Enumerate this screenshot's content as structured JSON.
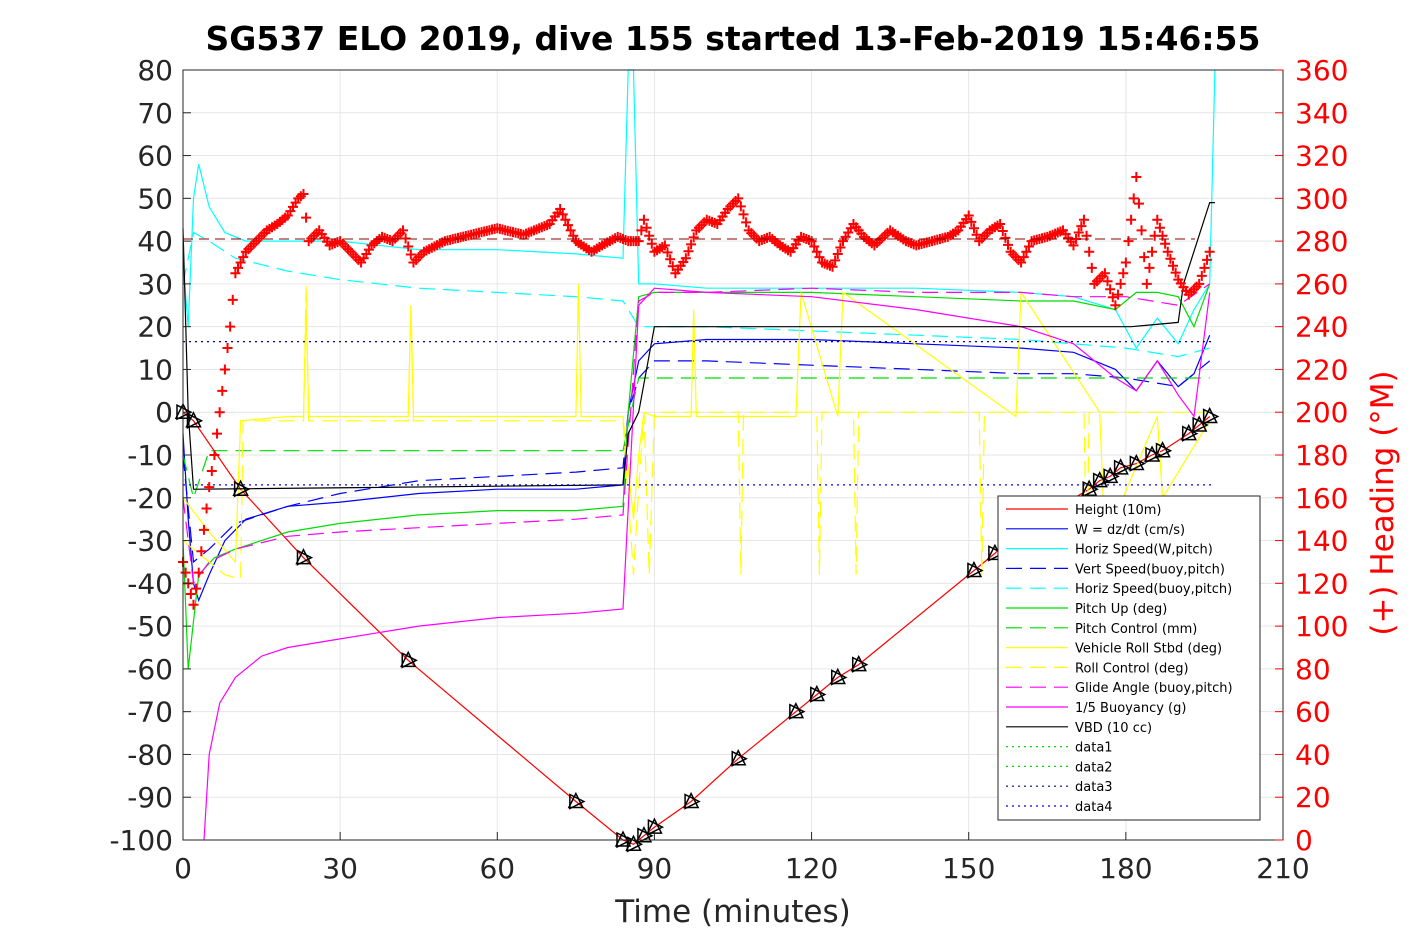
{
  "chart_data": {
    "type": "line",
    "title": "SG537 ELO 2019, dive 155 started 13-Feb-2019 15:46:55",
    "xlabel": "Time (minutes)",
    "ylabel": "",
    "y2label": "(+) Heading (°M)",
    "xlim": [
      0,
      210
    ],
    "ylim": [
      -100,
      80
    ],
    "y2lim": [
      0,
      360
    ],
    "xticks": [
      "0",
      "30",
      "60",
      "90",
      "120",
      "150",
      "180",
      "210"
    ],
    "yticks": [
      "80",
      "70",
      "60",
      "50",
      "40",
      "30",
      "20",
      "10",
      "0",
      "-10",
      "-20",
      "-30",
      "-40",
      "-50",
      "-60",
      "-70",
      "-80",
      "-90",
      "-100"
    ],
    "y2ticks": [
      "360",
      "340",
      "320",
      "300",
      "280",
      "260",
      "240",
      "220",
      "200",
      "180",
      "160",
      "140",
      "120",
      "100",
      "80",
      "60",
      "40",
      "20",
      "0"
    ],
    "grid": true,
    "legend_position": "lower-right",
    "colors": {
      "heading": "#ff0000",
      "right_axis": "#ff0000"
    },
    "series": [
      {
        "name": "Height (10m)",
        "color": "#ff0000",
        "style": "solid",
        "marker": "triangle",
        "x": [
          0,
          2,
          11,
          23,
          43,
          75,
          84,
          86,
          88,
          90,
          97,
          106,
          117,
          121,
          125,
          129,
          151,
          155,
          159,
          173,
          175,
          177,
          179,
          182,
          185,
          187,
          192,
          194,
          196
        ],
        "y": [
          0,
          -2,
          -18,
          -34,
          -58,
          -91,
          -100,
          -101,
          -99,
          -97,
          -91,
          -81,
          -70,
          -66,
          -62,
          -59,
          -37,
          -33,
          -28,
          -18,
          -16,
          -15,
          -13,
          -12,
          -10,
          -9,
          -5,
          -3,
          -1
        ]
      },
      {
        "name": "W = dz/dt (cm/s)",
        "color": "#0000ff",
        "style": "solid",
        "x": [
          0,
          1,
          2,
          3,
          5,
          8,
          12,
          20,
          30,
          45,
          60,
          75,
          84,
          85,
          87,
          90,
          100,
          120,
          140,
          160,
          170,
          178,
          182,
          186,
          190,
          193,
          196
        ],
        "y": [
          -5,
          -25,
          -40,
          -44,
          -38,
          -30,
          -25,
          -22,
          -21,
          -19,
          -18,
          -18,
          -17,
          0,
          12,
          16,
          17,
          17,
          16,
          15,
          14,
          10,
          5,
          12,
          6,
          9,
          18
        ]
      },
      {
        "name": "Horiz Speed(W,pitch)",
        "color": "#00ffff",
        "style": "solid",
        "x": [
          0,
          1,
          2,
          3,
          5,
          8,
          12,
          20,
          30,
          45,
          60,
          75,
          84,
          85,
          86,
          87,
          88,
          90,
          100,
          120,
          140,
          160,
          170,
          178,
          182,
          186,
          190,
          193,
          196,
          197
        ],
        "y": [
          35,
          20,
          50,
          58,
          48,
          42,
          40,
          40,
          40,
          38,
          38,
          37,
          36,
          80,
          80,
          30,
          30,
          30,
          29,
          29,
          29,
          28,
          27,
          24,
          15,
          22,
          16,
          24,
          30,
          80
        ]
      },
      {
        "name": "Vert Speed(buoy,pitch)",
        "color": "#0000ff",
        "style": "dashed",
        "x": [
          0,
          2,
          5,
          10,
          20,
          30,
          45,
          60,
          75,
          84,
          85,
          87,
          90,
          100,
          120,
          140,
          160,
          170,
          180,
          190,
          196
        ],
        "y": [
          -10,
          -35,
          -32,
          -26,
          -22,
          -19,
          -16,
          -15,
          -14,
          -13,
          0,
          8,
          12,
          12,
          11,
          10,
          9,
          9,
          8,
          6,
          12
        ]
      },
      {
        "name": "Horiz Speed(buoy,pitch)",
        "color": "#00ffff",
        "style": "dashed",
        "x": [
          0,
          2,
          5,
          10,
          20,
          30,
          45,
          60,
          75,
          84,
          87,
          90,
          100,
          120,
          140,
          160,
          170,
          180,
          190,
          196
        ],
        "y": [
          30,
          42,
          40,
          36,
          33,
          31,
          29,
          28,
          27,
          26,
          20,
          20,
          20,
          19,
          18,
          17,
          16,
          15,
          13,
          15
        ]
      },
      {
        "name": "Pitch Up (deg)",
        "color": "#00dd00",
        "style": "solid",
        "x": [
          0,
          1,
          3,
          6,
          10,
          20,
          30,
          45,
          60,
          75,
          84,
          85,
          87,
          90,
          100,
          120,
          140,
          160,
          170,
          178,
          182,
          186,
          190,
          193,
          196
        ],
        "y": [
          -30,
          -60,
          -38,
          -34,
          -32,
          -28,
          -26,
          -24,
          -23,
          -23,
          -22,
          0,
          27,
          28,
          28,
          28,
          27,
          26,
          26,
          24,
          28,
          28,
          27,
          20,
          30
        ]
      },
      {
        "name": "Pitch Control (mm)",
        "color": "#00dd00",
        "style": "dashed",
        "x": [
          0,
          2,
          5,
          84,
          85,
          87,
          196
        ],
        "y": [
          -10,
          -20,
          -9,
          -9,
          -3,
          8,
          8
        ]
      },
      {
        "name": "Vehicle Roll Stbd (deg)",
        "color": "#ffff00",
        "style": "solid",
        "x": [
          0,
          5,
          10,
          11,
          20,
          23,
          23.5,
          24,
          43,
          43.5,
          44,
          75,
          75.5,
          76,
          84,
          86,
          87,
          88,
          90,
          97,
          97.5,
          98,
          117,
          118,
          125,
          126,
          159,
          160,
          175,
          176,
          186,
          187,
          196
        ],
        "y": [
          -20,
          -28,
          -35,
          -2,
          -1,
          -1,
          25,
          -1,
          -1,
          25,
          -1,
          -1,
          30,
          -1,
          -1,
          -25,
          -10,
          0,
          -1,
          -1,
          24,
          -1,
          -1,
          28,
          -1,
          28,
          -1,
          28,
          0,
          -30,
          -1,
          -20,
          -2
        ]
      },
      {
        "name": "Roll Control (deg)",
        "color": "#ffff00",
        "style": "dashed",
        "x": [
          0,
          8,
          11,
          11.5,
          23,
          23.5,
          24,
          43,
          43.5,
          44,
          84,
          86,
          87,
          88,
          89,
          90,
          106,
          106.5,
          107,
          121,
          121.5,
          122,
          128,
          128.5,
          129,
          152,
          152.5,
          153,
          172,
          172.5,
          173,
          196
        ],
        "y": [
          -30,
          -38,
          -39,
          -2,
          -2,
          30,
          -2,
          -2,
          25,
          -2,
          -2,
          -38,
          -18,
          0,
          -38,
          0,
          0,
          -38,
          0,
          0,
          -38,
          0,
          0,
          -38,
          0,
          0,
          -38,
          0,
          0,
          -38,
          0,
          0
        ]
      },
      {
        "name": "Glide Angle (buoy,pitch)",
        "color": "#ff00ff",
        "style": "dashed",
        "x": [
          0,
          2,
          5,
          10,
          20,
          30,
          45,
          60,
          75,
          84,
          87,
          90,
          100,
          120,
          140,
          160,
          170,
          180,
          190,
          196
        ],
        "y": [
          -20,
          -40,
          -35,
          -32,
          -29,
          -28,
          -27,
          -26,
          -25,
          -24,
          26,
          28,
          28,
          29,
          28,
          28,
          27,
          27,
          25,
          30
        ]
      },
      {
        "name": "1/5 Buoyancy (g)",
        "color": "#ff00ff",
        "style": "solid",
        "x": [
          4,
          5,
          7,
          10,
          15,
          20,
          30,
          45,
          60,
          75,
          84,
          87,
          90,
          100,
          120,
          140,
          160,
          170,
          178,
          182,
          186,
          190,
          193,
          196
        ],
        "y": [
          -100,
          -80,
          -68,
          -62,
          -57,
          -55,
          -53,
          -50,
          -48,
          -47,
          -46,
          25,
          29,
          28,
          27,
          24,
          20,
          16,
          8,
          5,
          12,
          4,
          -1,
          28
        ]
      },
      {
        "name": "VBD (10 cc)",
        "color": "#000000",
        "style": "solid",
        "x": [
          0,
          1,
          2,
          3,
          84,
          85,
          87,
          90,
          180,
          181,
          190,
          191,
          196,
          197
        ],
        "y": [
          43,
          0,
          -18,
          -18,
          -17,
          -5,
          0,
          20,
          20,
          20,
          21,
          30,
          49,
          49
        ]
      },
      {
        "name": "data1",
        "color": "#00dd00",
        "style": "dotted",
        "x": [],
        "y": []
      },
      {
        "name": "data2",
        "color": "#00dd00",
        "style": "dotted",
        "x": [],
        "y": []
      },
      {
        "name": "data3",
        "color": "#000080",
        "style": "dotted",
        "x": [
          0,
          197
        ],
        "y": [
          16.5,
          16.5
        ]
      },
      {
        "name": "data4",
        "color": "#0000ff",
        "style": "dotted",
        "x": [
          0,
          197
        ],
        "y": [
          -17,
          -17
        ]
      }
    ],
    "heading": {
      "axis": "right",
      "color": "#ff0000",
      "marker": "plus",
      "x": [
        0,
        1,
        2,
        3,
        4,
        5,
        6,
        7,
        8,
        9,
        10,
        12,
        14,
        16,
        18,
        20,
        22,
        23,
        24,
        26,
        28,
        30,
        32,
        34,
        36,
        38,
        40,
        42,
        44,
        46,
        50,
        55,
        60,
        65,
        70,
        72,
        75,
        78,
        80,
        83,
        85,
        87,
        88,
        90,
        92,
        94,
        96,
        98,
        100,
        102,
        104,
        106,
        108,
        110,
        112,
        114,
        116,
        118,
        120,
        122,
        124,
        126,
        128,
        130,
        132,
        135,
        138,
        140,
        143,
        146,
        148,
        150,
        152,
        154,
        156,
        158,
        160,
        162,
        165,
        168,
        170,
        172,
        174,
        176,
        178,
        180,
        182,
        184,
        186,
        188,
        190,
        192,
        194,
        196
      ],
      "y": [
        130,
        120,
        110,
        125,
        145,
        165,
        180,
        200,
        220,
        240,
        265,
        275,
        280,
        285,
        288,
        292,
        300,
        302,
        280,
        285,
        278,
        280,
        275,
        270,
        278,
        282,
        280,
        285,
        270,
        275,
        280,
        283,
        286,
        283,
        288,
        295,
        280,
        275,
        278,
        282,
        280,
        280,
        290,
        275,
        278,
        265,
        272,
        285,
        290,
        288,
        295,
        300,
        285,
        280,
        282,
        278,
        275,
        282,
        280,
        270,
        268,
        280,
        288,
        282,
        278,
        285,
        280,
        278,
        280,
        282,
        285,
        292,
        280,
        285,
        288,
        275,
        270,
        280,
        282,
        285,
        278,
        290,
        260,
        265,
        250,
        270,
        310,
        260,
        290,
        275,
        262,
        255,
        260,
        275
      ]
    }
  }
}
